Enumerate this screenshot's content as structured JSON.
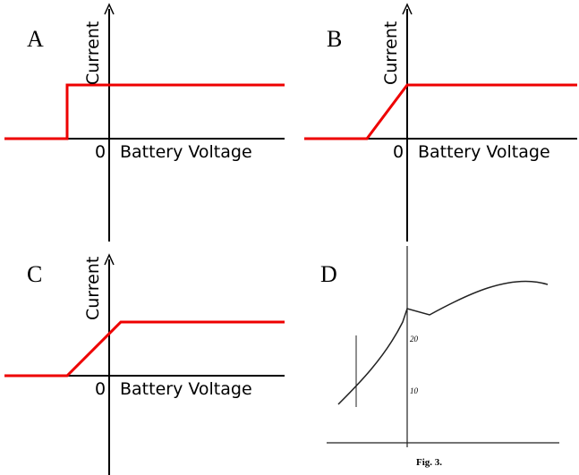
{
  "panels": [
    {
      "label": "A",
      "y_axis_label": "Current",
      "origin_label": "0",
      "x_axis_label": "Battery Voltage"
    },
    {
      "label": "B",
      "y_axis_label": "Current",
      "origin_label": "0",
      "x_axis_label": "Battery Voltage"
    },
    {
      "label": "C",
      "y_axis_label": "Current",
      "origin_label": "0",
      "x_axis_label": "Battery Voltage"
    }
  ],
  "figure_d": {
    "label": "D",
    "y_ticks": [
      "20",
      "10"
    ],
    "caption": "Fig. 3."
  }
}
